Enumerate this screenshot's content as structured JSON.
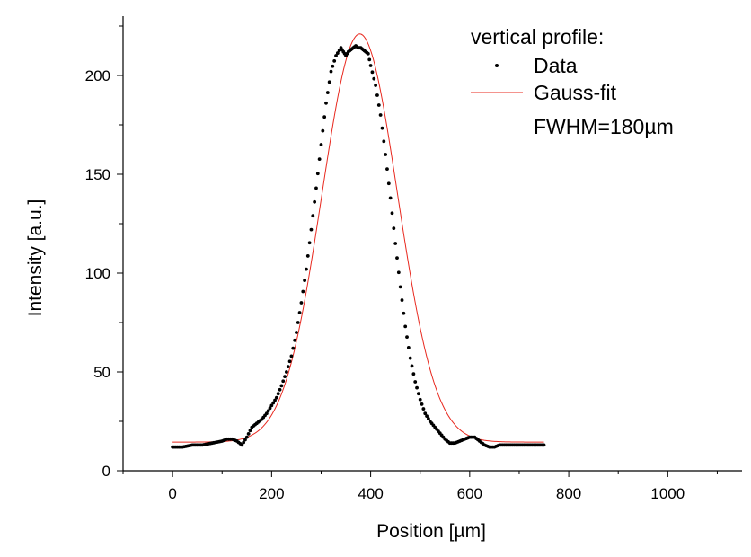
{
  "chart_data": {
    "type": "scatter",
    "xlabel": "Position [µm]",
    "ylabel": "Intensity [a.u.]",
    "xlim": [
      -100,
      1150
    ],
    "ylim": [
      0,
      230
    ],
    "xticks": [
      0,
      200,
      400,
      600,
      800,
      1000
    ],
    "yticks": [
      0,
      50,
      100,
      150,
      200
    ],
    "legend": {
      "placement": "top-right",
      "title": "vertical profile:",
      "entries": [
        "Data",
        "Gauss-fit"
      ],
      "note": "FWHM=180µm"
    },
    "series": [
      {
        "name": "Data",
        "kind": "points",
        "color": "#000000",
        "x": [
          0,
          20,
          40,
          60,
          80,
          100,
          110,
          120,
          130,
          140,
          150,
          160,
          170,
          180,
          190,
          200,
          210,
          220,
          230,
          240,
          250,
          260,
          270,
          280,
          290,
          300,
          310,
          320,
          330,
          340,
          345,
          350,
          355,
          360,
          365,
          370,
          375,
          380,
          385,
          390,
          395,
          400,
          410,
          420,
          430,
          440,
          450,
          460,
          470,
          480,
          490,
          500,
          510,
          520,
          530,
          540,
          550,
          560,
          570,
          580,
          590,
          600,
          610,
          620,
          630,
          640,
          650,
          660,
          670,
          680,
          700,
          720,
          740,
          750
        ],
        "y": [
          12,
          12,
          13,
          13,
          14,
          15,
          16,
          16,
          15,
          13,
          17,
          22,
          24,
          26,
          29,
          33,
          37,
          43,
          50,
          58,
          70,
          85,
          102,
          122,
          143,
          165,
          186,
          202,
          210,
          214,
          212,
          210,
          212,
          213,
          214,
          215,
          214,
          214,
          213,
          212,
          211,
          205,
          195,
          180,
          160,
          138,
          115,
          93,
          73,
          57,
          45,
          36,
          29,
          25,
          22,
          19,
          16,
          14,
          14,
          15,
          16,
          17,
          17,
          15,
          13,
          12,
          12,
          13,
          13,
          13,
          13,
          13,
          13,
          13
        ]
      },
      {
        "name": "Gauss-fit",
        "kind": "gaussian",
        "color": "#e8281e",
        "baseline": 14.5,
        "amplitude": 206.5,
        "center": 378,
        "fwhm": 180,
        "x_range": [
          0,
          750
        ]
      }
    ]
  }
}
